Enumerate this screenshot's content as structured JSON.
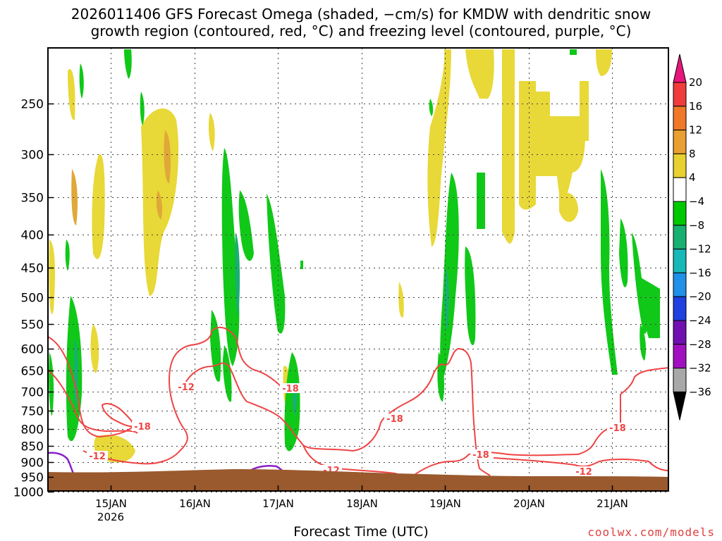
{
  "chart_data": {
    "type": "heatmap",
    "title_line1": "2026011406 GFS Forecast Omega (shaded, −cm/s) for KMDW with dendritic snow",
    "title_line2": "growth region (contoured, red, °C) and freezing level (contoured, purple, °C)",
    "xlabel": "Forecast Time (UTC)",
    "x_ticks": [
      "15JAN",
      "16JAN",
      "17JAN",
      "18JAN",
      "19JAN",
      "20JAN",
      "21JAN"
    ],
    "x_year_label": "2026",
    "y_ticks": [
      250,
      300,
      350,
      400,
      450,
      500,
      550,
      600,
      650,
      700,
      750,
      800,
      850,
      900,
      950,
      1000
    ],
    "colorbar_levels": [
      "20",
      "16",
      "12",
      "8",
      "4",
      "−4",
      "−8",
      "−12",
      "−16",
      "−20",
      "−24",
      "−28",
      "−32",
      "−36"
    ],
    "colorbar_colors": [
      "#f03c3c",
      "#f07828",
      "#e8a030",
      "#e8d030",
      "#ffffff",
      "#00c800",
      "#18b070",
      "#18b8b8",
      "#2090e8",
      "#2040e0",
      "#7010b0",
      "#a010c0",
      "#a8a8a8"
    ],
    "colorbar_top_color": "#e8167a",
    "colorbar_bottom_color": "#000000",
    "contour_labels": [
      "-18",
      "-12",
      "-12",
      "-18",
      "-18",
      "-12",
      "-18",
      "-18",
      "-12"
    ],
    "contour_color": "#ef4444",
    "freezing_color": "#8b1fc8",
    "ground_color": "#9a5a2e"
  },
  "credit": "coolwx.com/models"
}
